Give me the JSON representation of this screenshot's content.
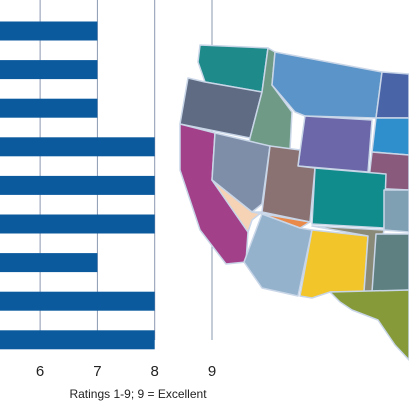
{
  "chart_data": {
    "type": "barh",
    "values": [
      7,
      7,
      7,
      8,
      8,
      8,
      7,
      8,
      8
    ],
    "color": "#0b5a9e",
    "xlim": [
      5.3,
      9
    ],
    "xticks": [
      6,
      7,
      8,
      9
    ],
    "grid": true,
    "x_label": "Ratings 1-9; 9 = Excellent"
  }
}
